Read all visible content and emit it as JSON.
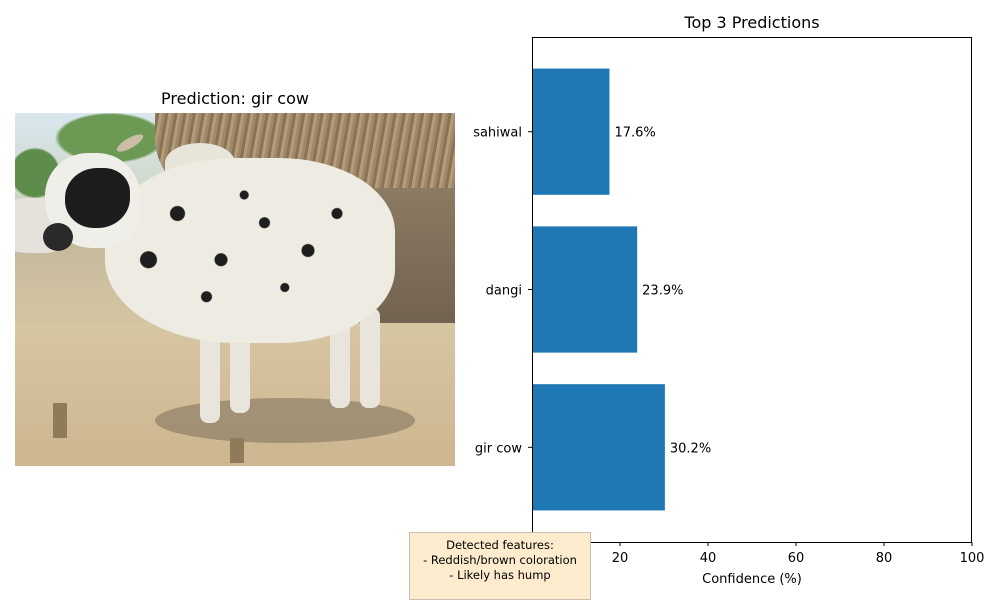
{
  "left_panel": {
    "title": "Prediction: gir cow",
    "image_subject": "Spotted white cow with black patches standing near a thatched hut"
  },
  "features_box": {
    "heading": "Detected features:",
    "lines": [
      "- Reddish/brown coloration",
      "- Likely has hump"
    ]
  },
  "chart_data": {
    "type": "bar",
    "orientation": "horizontal",
    "title": "Top 3 Predictions",
    "xlabel": "Confidence (%)",
    "ylabel": "",
    "categories": [
      "gir cow",
      "dangi",
      "sahiwal"
    ],
    "values": [
      30.2,
      23.9,
      17.6
    ],
    "value_labels": [
      "30.2%",
      "23.9%",
      "17.6%"
    ],
    "xlim": [
      0,
      100
    ],
    "xticks": [
      0,
      20,
      40,
      60,
      80,
      100
    ],
    "grid": false,
    "bar_color": "#1f77b4"
  }
}
